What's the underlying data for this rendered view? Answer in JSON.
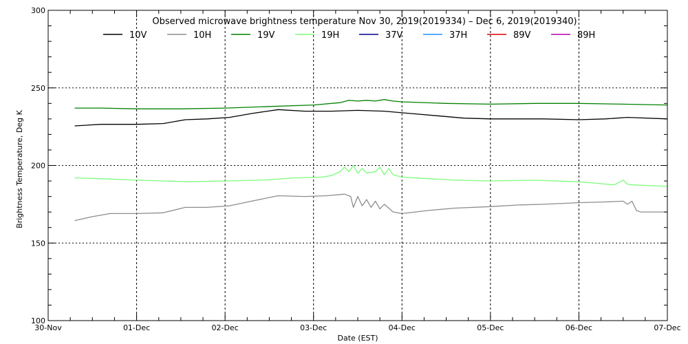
{
  "chart_data": {
    "type": "line",
    "title": "Observed microwave brightness temperature Nov 30, 2019(2019334) – Dec  6, 2019(2019340)",
    "xlabel": "Date (EST)",
    "ylabel": "Brightness Temperature, Deg K",
    "x_unit": "days (Dec 2019)",
    "xlim": [
      0,
      7
    ],
    "ylim": [
      100,
      300
    ],
    "x_ticks": [
      {
        "x": 0,
        "label": "30-Nov"
      },
      {
        "x": 1,
        "label": "01-Dec"
      },
      {
        "x": 2,
        "label": "02-Dec"
      },
      {
        "x": 3,
        "label": "03-Dec"
      },
      {
        "x": 4,
        "label": "04-Dec"
      },
      {
        "x": 5,
        "label": "05-Dec"
      },
      {
        "x": 6,
        "label": "06-Dec"
      },
      {
        "x": 7,
        "label": "07-Dec"
      }
    ],
    "y_ticks": [
      100,
      150,
      200,
      250,
      300
    ],
    "grid": "dotted",
    "legend": "top",
    "series": [
      {
        "name": "10V",
        "color": "#000000",
        "points": [
          [
            0.3,
            225.5
          ],
          [
            0.6,
            226.5
          ],
          [
            1.0,
            226.5
          ],
          [
            1.3,
            227
          ],
          [
            1.55,
            229.5
          ],
          [
            1.8,
            230
          ],
          [
            2.05,
            231
          ],
          [
            2.3,
            233.5
          ],
          [
            2.6,
            236
          ],
          [
            2.9,
            235
          ],
          [
            3.2,
            235
          ],
          [
            3.5,
            235.5
          ],
          [
            3.8,
            235
          ],
          [
            4.1,
            233.5
          ],
          [
            4.4,
            232
          ],
          [
            4.7,
            230.5
          ],
          [
            5.0,
            230
          ],
          [
            5.3,
            230
          ],
          [
            5.6,
            230
          ],
          [
            6.0,
            229.5
          ],
          [
            6.3,
            230
          ],
          [
            6.55,
            231
          ],
          [
            7.0,
            230
          ]
        ]
      },
      {
        "name": "10H",
        "color": "#8c8c8c",
        "points": [
          [
            0.3,
            164.5
          ],
          [
            0.5,
            167
          ],
          [
            0.7,
            169
          ],
          [
            1.0,
            169
          ],
          [
            1.3,
            169.5
          ],
          [
            1.55,
            173
          ],
          [
            1.8,
            173
          ],
          [
            2.05,
            174
          ],
          [
            2.3,
            177
          ],
          [
            2.6,
            180.5
          ],
          [
            2.9,
            180
          ],
          [
            3.15,
            180.5
          ],
          [
            3.35,
            181.5
          ],
          [
            3.42,
            180
          ],
          [
            3.45,
            173
          ],
          [
            3.5,
            180
          ],
          [
            3.55,
            174
          ],
          [
            3.6,
            178
          ],
          [
            3.65,
            173
          ],
          [
            3.7,
            177
          ],
          [
            3.75,
            172
          ],
          [
            3.8,
            175
          ],
          [
            3.9,
            170
          ],
          [
            4.0,
            169
          ],
          [
            4.3,
            171
          ],
          [
            4.6,
            172.5
          ],
          [
            5.0,
            173.5
          ],
          [
            5.3,
            174.5
          ],
          [
            5.6,
            175
          ],
          [
            6.0,
            176
          ],
          [
            6.3,
            176.5
          ],
          [
            6.5,
            177
          ],
          [
            6.55,
            175
          ],
          [
            6.6,
            177
          ],
          [
            6.65,
            171
          ],
          [
            6.7,
            170
          ],
          [
            7.0,
            170
          ]
        ]
      },
      {
        "name": "19V",
        "color": "#008000",
        "points": [
          [
            0.3,
            237
          ],
          [
            0.6,
            237
          ],
          [
            1.0,
            236.5
          ],
          [
            1.5,
            236.5
          ],
          [
            2.0,
            237
          ],
          [
            2.5,
            238
          ],
          [
            3.0,
            239
          ],
          [
            3.3,
            240.5
          ],
          [
            3.4,
            242
          ],
          [
            3.5,
            241.5
          ],
          [
            3.6,
            242
          ],
          [
            3.7,
            241.5
          ],
          [
            3.8,
            242.5
          ],
          [
            3.9,
            241.5
          ],
          [
            4.0,
            241
          ],
          [
            4.5,
            240
          ],
          [
            5.0,
            239.5
          ],
          [
            5.5,
            240
          ],
          [
            6.0,
            240
          ],
          [
            6.5,
            239.5
          ],
          [
            7.0,
            239
          ]
        ]
      },
      {
        "name": "19H",
        "color": "#7cfc7c",
        "points": [
          [
            0.3,
            192
          ],
          [
            0.6,
            191.5
          ],
          [
            1.0,
            190.5
          ],
          [
            1.3,
            190
          ],
          [
            1.6,
            189.5
          ],
          [
            2.0,
            190
          ],
          [
            2.4,
            190.5
          ],
          [
            2.8,
            192
          ],
          [
            3.1,
            192.5
          ],
          [
            3.2,
            193.5
          ],
          [
            3.3,
            196
          ],
          [
            3.35,
            199
          ],
          [
            3.4,
            196
          ],
          [
            3.45,
            200
          ],
          [
            3.5,
            195
          ],
          [
            3.55,
            198
          ],
          [
            3.6,
            195
          ],
          [
            3.7,
            196
          ],
          [
            3.75,
            199
          ],
          [
            3.8,
            194
          ],
          [
            3.85,
            198
          ],
          [
            3.9,
            194
          ],
          [
            4.0,
            192.5
          ],
          [
            4.3,
            191.5
          ],
          [
            4.6,
            190.5
          ],
          [
            5.0,
            190
          ],
          [
            5.5,
            190.5
          ],
          [
            6.0,
            189.5
          ],
          [
            6.2,
            188.5
          ],
          [
            6.4,
            187.5
          ],
          [
            6.5,
            190.5
          ],
          [
            6.55,
            188
          ],
          [
            6.6,
            187.5
          ],
          [
            7.0,
            186.5
          ]
        ]
      },
      {
        "name": "37V",
        "color": "#00008b",
        "points": []
      },
      {
        "name": "37H",
        "color": "#1e90ff",
        "points": []
      },
      {
        "name": "89V",
        "color": "#dc0000",
        "points": []
      },
      {
        "name": "89H",
        "color": "#b400b4",
        "points": []
      }
    ]
  }
}
